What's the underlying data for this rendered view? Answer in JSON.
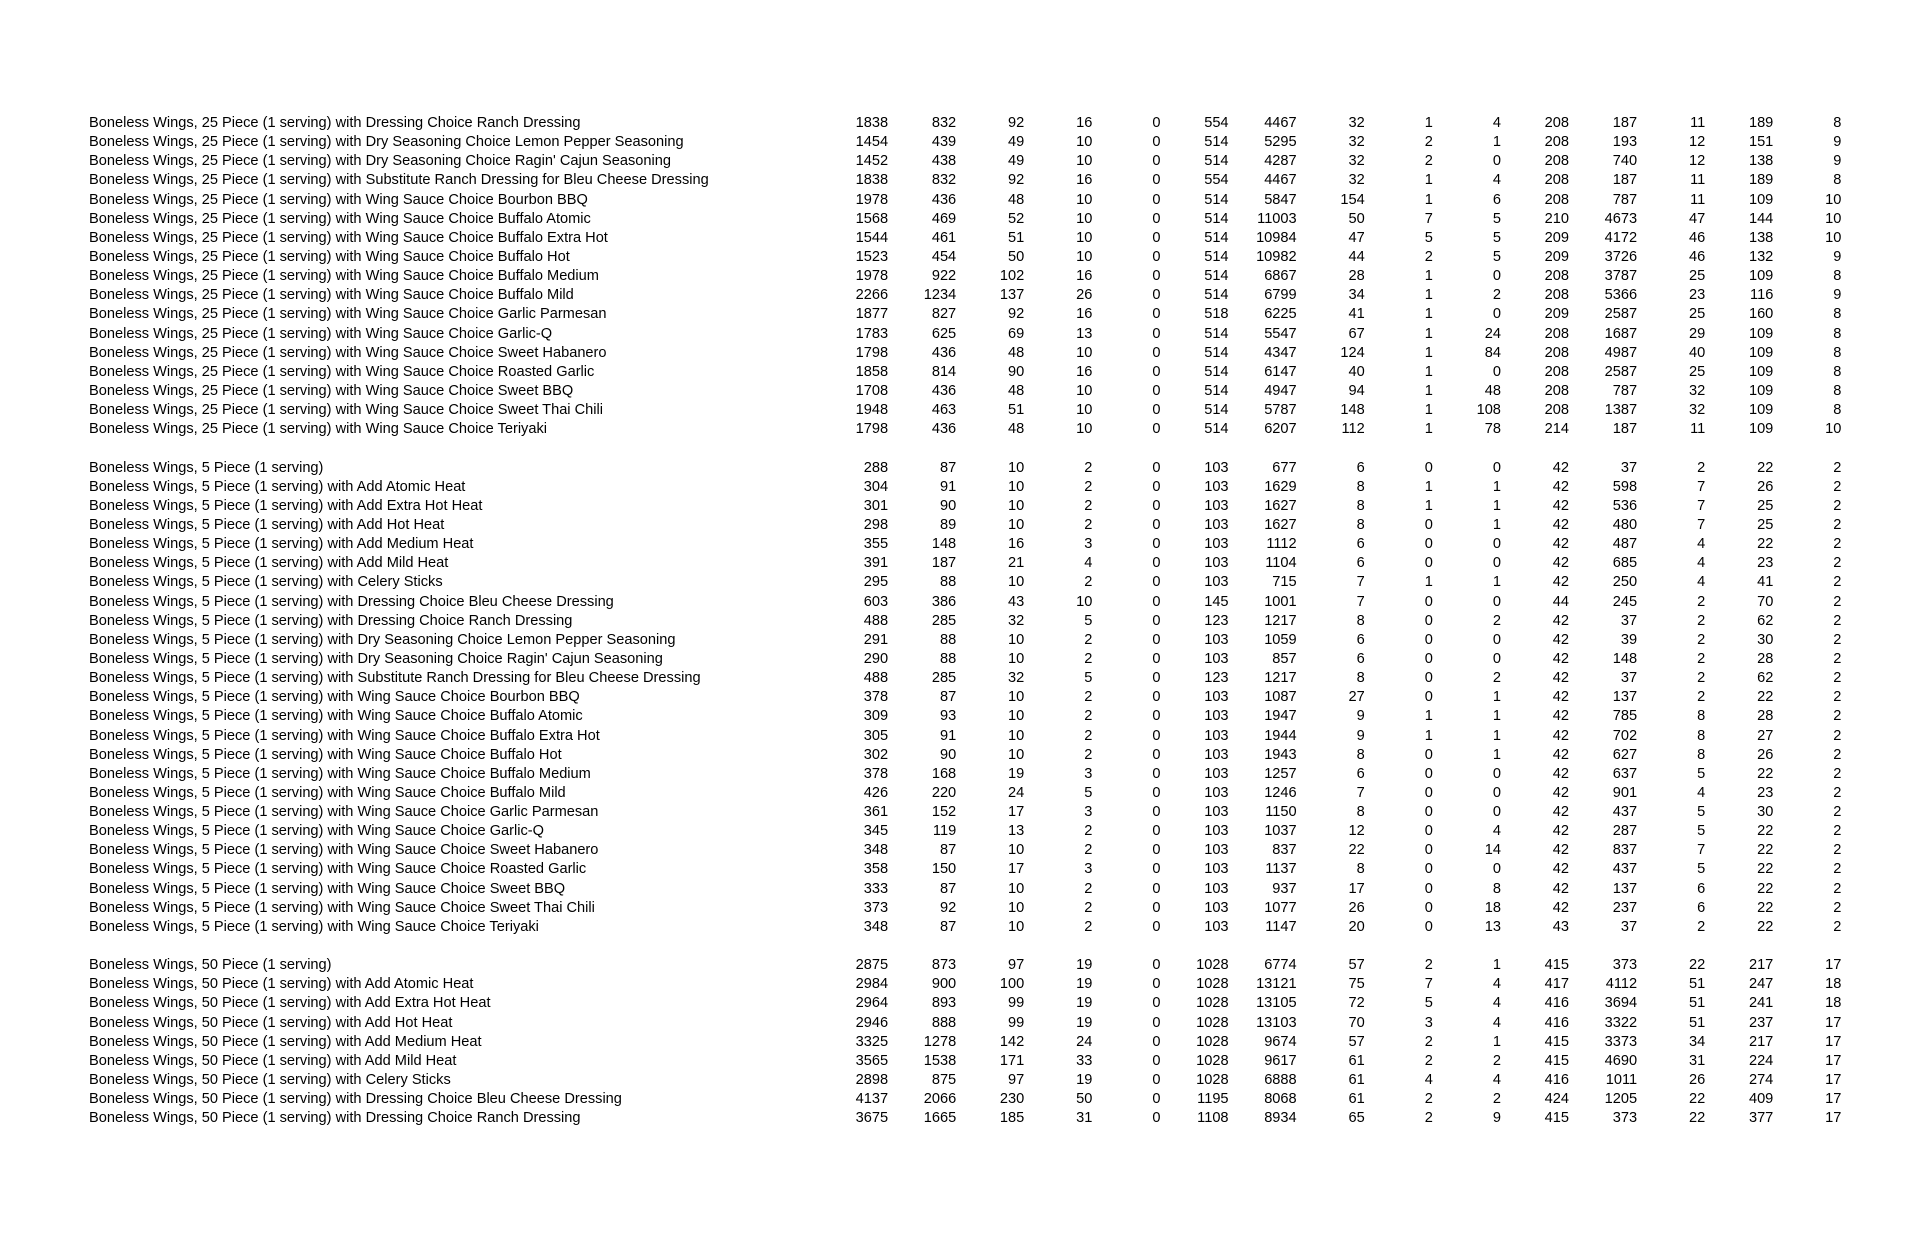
{
  "groups": [
    {
      "rows": [
        [
          "Boneless Wings, 25 Piece (1 serving) with Dressing Choice Ranch Dressing",
          1838,
          832,
          92,
          16,
          0,
          554,
          4467,
          32,
          1,
          4,
          208,
          187,
          11,
          189,
          8
        ],
        [
          "Boneless Wings, 25 Piece (1 serving) with Dry Seasoning Choice Lemon Pepper Seasoning",
          1454,
          439,
          49,
          10,
          0,
          514,
          5295,
          32,
          2,
          1,
          208,
          193,
          12,
          151,
          9
        ],
        [
          "Boneless Wings, 25 Piece (1 serving) with Dry Seasoning Choice Ragin' Cajun Seasoning",
          1452,
          438,
          49,
          10,
          0,
          514,
          4287,
          32,
          2,
          0,
          208,
          740,
          12,
          138,
          9
        ],
        [
          "Boneless Wings, 25 Piece (1 serving) with Substitute Ranch Dressing for Bleu Cheese Dressing",
          1838,
          832,
          92,
          16,
          0,
          554,
          4467,
          32,
          1,
          4,
          208,
          187,
          11,
          189,
          8
        ],
        [
          "Boneless Wings, 25 Piece (1 serving) with Wing Sauce Choice Bourbon BBQ",
          1978,
          436,
          48,
          10,
          0,
          514,
          5847,
          154,
          1,
          6,
          208,
          787,
          11,
          109,
          10
        ],
        [
          "Boneless Wings, 25 Piece (1 serving) with Wing Sauce Choice Buffalo Atomic",
          1568,
          469,
          52,
          10,
          0,
          514,
          11003,
          50,
          7,
          5,
          210,
          4673,
          47,
          144,
          10
        ],
        [
          "Boneless Wings, 25 Piece (1 serving) with Wing Sauce Choice Buffalo Extra Hot",
          1544,
          461,
          51,
          10,
          0,
          514,
          10984,
          47,
          5,
          5,
          209,
          4172,
          46,
          138,
          10
        ],
        [
          "Boneless Wings, 25 Piece (1 serving) with Wing Sauce Choice Buffalo Hot",
          1523,
          454,
          50,
          10,
          0,
          514,
          10982,
          44,
          2,
          5,
          209,
          3726,
          46,
          132,
          9
        ],
        [
          "Boneless Wings, 25 Piece (1 serving) with Wing Sauce Choice Buffalo Medium",
          1978,
          922,
          102,
          16,
          0,
          514,
          6867,
          28,
          1,
          0,
          208,
          3787,
          25,
          109,
          8
        ],
        [
          "Boneless Wings, 25 Piece (1 serving) with Wing Sauce Choice Buffalo Mild",
          2266,
          1234,
          137,
          26,
          0,
          514,
          6799,
          34,
          1,
          2,
          208,
          5366,
          23,
          116,
          9
        ],
        [
          "Boneless Wings, 25 Piece (1 serving) with Wing Sauce Choice Garlic Parmesan",
          1877,
          827,
          92,
          16,
          0,
          518,
          6225,
          41,
          1,
          0,
          209,
          2587,
          25,
          160,
          8
        ],
        [
          "Boneless Wings, 25 Piece (1 serving) with Wing Sauce Choice Garlic-Q",
          1783,
          625,
          69,
          13,
          0,
          514,
          5547,
          67,
          1,
          24,
          208,
          1687,
          29,
          109,
          8
        ],
        [
          "Boneless Wings, 25 Piece (1 serving) with Wing Sauce Choice Sweet Habanero",
          1798,
          436,
          48,
          10,
          0,
          514,
          4347,
          124,
          1,
          84,
          208,
          4987,
          40,
          109,
          8
        ],
        [
          "Boneless Wings, 25 Piece (1 serving) with Wing Sauce Choice Roasted Garlic",
          1858,
          814,
          90,
          16,
          0,
          514,
          6147,
          40,
          1,
          0,
          208,
          2587,
          25,
          109,
          8
        ],
        [
          "Boneless Wings, 25 Piece (1 serving) with Wing Sauce Choice Sweet BBQ",
          1708,
          436,
          48,
          10,
          0,
          514,
          4947,
          94,
          1,
          48,
          208,
          787,
          32,
          109,
          8
        ],
        [
          "Boneless Wings, 25 Piece (1 serving) with Wing Sauce Choice Sweet Thai Chili",
          1948,
          463,
          51,
          10,
          0,
          514,
          5787,
          148,
          1,
          108,
          208,
          1387,
          32,
          109,
          8
        ],
        [
          "Boneless Wings, 25 Piece (1 serving) with Wing Sauce Choice Teriyaki",
          1798,
          436,
          48,
          10,
          0,
          514,
          6207,
          112,
          1,
          78,
          214,
          187,
          11,
          109,
          10
        ]
      ]
    },
    {
      "rows": [
        [
          "Boneless Wings, 5 Piece (1 serving)",
          288,
          87,
          10,
          2,
          0,
          103,
          677,
          6,
          0,
          0,
          42,
          37,
          2,
          22,
          2
        ],
        [
          "Boneless Wings, 5 Piece (1 serving) with Add Atomic Heat",
          304,
          91,
          10,
          2,
          0,
          103,
          1629,
          8,
          1,
          1,
          42,
          598,
          7,
          26,
          2
        ],
        [
          "Boneless Wings, 5 Piece (1 serving) with Add Extra Hot Heat",
          301,
          90,
          10,
          2,
          0,
          103,
          1627,
          8,
          1,
          1,
          42,
          536,
          7,
          25,
          2
        ],
        [
          "Boneless Wings, 5 Piece (1 serving) with Add Hot Heat",
          298,
          89,
          10,
          2,
          0,
          103,
          1627,
          8,
          0,
          1,
          42,
          480,
          7,
          25,
          2
        ],
        [
          "Boneless Wings, 5 Piece (1 serving) with Add Medium Heat",
          355,
          148,
          16,
          3,
          0,
          103,
          1112,
          6,
          0,
          0,
          42,
          487,
          4,
          22,
          2
        ],
        [
          "Boneless Wings, 5 Piece (1 serving) with Add Mild Heat",
          391,
          187,
          21,
          4,
          0,
          103,
          1104,
          6,
          0,
          0,
          42,
          685,
          4,
          23,
          2
        ],
        [
          "Boneless Wings, 5 Piece (1 serving) with Celery Sticks",
          295,
          88,
          10,
          2,
          0,
          103,
          715,
          7,
          1,
          1,
          42,
          250,
          4,
          41,
          2
        ],
        [
          "Boneless Wings, 5 Piece (1 serving) with Dressing Choice Bleu Cheese Dressing",
          603,
          386,
          43,
          10,
          0,
          145,
          1001,
          7,
          0,
          0,
          44,
          245,
          2,
          70,
          2
        ],
        [
          "Boneless Wings, 5 Piece (1 serving) with Dressing Choice Ranch Dressing",
          488,
          285,
          32,
          5,
          0,
          123,
          1217,
          8,
          0,
          2,
          42,
          37,
          2,
          62,
          2
        ],
        [
          "Boneless Wings, 5 Piece (1 serving) with Dry Seasoning Choice Lemon Pepper Seasoning",
          291,
          88,
          10,
          2,
          0,
          103,
          1059,
          6,
          0,
          0,
          42,
          39,
          2,
          30,
          2
        ],
        [
          "Boneless Wings, 5 Piece (1 serving) with Dry Seasoning Choice Ragin' Cajun Seasoning",
          290,
          88,
          10,
          2,
          0,
          103,
          857,
          6,
          0,
          0,
          42,
          148,
          2,
          28,
          2
        ],
        [
          "Boneless Wings, 5 Piece (1 serving) with Substitute Ranch Dressing for Bleu Cheese Dressing",
          488,
          285,
          32,
          5,
          0,
          123,
          1217,
          8,
          0,
          2,
          42,
          37,
          2,
          62,
          2
        ],
        [
          "Boneless Wings, 5 Piece (1 serving) with Wing Sauce Choice Bourbon BBQ",
          378,
          87,
          10,
          2,
          0,
          103,
          1087,
          27,
          0,
          1,
          42,
          137,
          2,
          22,
          2
        ],
        [
          "Boneless Wings, 5 Piece (1 serving) with Wing Sauce Choice Buffalo Atomic",
          309,
          93,
          10,
          2,
          0,
          103,
          1947,
          9,
          1,
          1,
          42,
          785,
          8,
          28,
          2
        ],
        [
          "Boneless Wings, 5 Piece (1 serving) with Wing Sauce Choice Buffalo Extra Hot",
          305,
          91,
          10,
          2,
          0,
          103,
          1944,
          9,
          1,
          1,
          42,
          702,
          8,
          27,
          2
        ],
        [
          "Boneless Wings, 5 Piece (1 serving) with Wing Sauce Choice Buffalo Hot",
          302,
          90,
          10,
          2,
          0,
          103,
          1943,
          8,
          0,
          1,
          42,
          627,
          8,
          26,
          2
        ],
        [
          "Boneless Wings, 5 Piece (1 serving) with Wing Sauce Choice Buffalo Medium",
          378,
          168,
          19,
          3,
          0,
          103,
          1257,
          6,
          0,
          0,
          42,
          637,
          5,
          22,
          2
        ],
        [
          "Boneless Wings, 5 Piece (1 serving) with Wing Sauce Choice Buffalo Mild",
          426,
          220,
          24,
          5,
          0,
          103,
          1246,
          7,
          0,
          0,
          42,
          901,
          4,
          23,
          2
        ],
        [
          "Boneless Wings, 5 Piece (1 serving) with Wing Sauce Choice Garlic Parmesan",
          361,
          152,
          17,
          3,
          0,
          103,
          1150,
          8,
          0,
          0,
          42,
          437,
          5,
          30,
          2
        ],
        [
          "Boneless Wings, 5 Piece (1 serving) with Wing Sauce Choice Garlic-Q",
          345,
          119,
          13,
          2,
          0,
          103,
          1037,
          12,
          0,
          4,
          42,
          287,
          5,
          22,
          2
        ],
        [
          "Boneless Wings, 5 Piece (1 serving) with Wing Sauce Choice Sweet Habanero",
          348,
          87,
          10,
          2,
          0,
          103,
          837,
          22,
          0,
          14,
          42,
          837,
          7,
          22,
          2
        ],
        [
          "Boneless Wings, 5 Piece (1 serving) with Wing Sauce Choice Roasted Garlic",
          358,
          150,
          17,
          3,
          0,
          103,
          1137,
          8,
          0,
          0,
          42,
          437,
          5,
          22,
          2
        ],
        [
          "Boneless Wings, 5 Piece (1 serving) with Wing Sauce Choice Sweet BBQ",
          333,
          87,
          10,
          2,
          0,
          103,
          937,
          17,
          0,
          8,
          42,
          137,
          6,
          22,
          2
        ],
        [
          "Boneless Wings, 5 Piece (1 serving) with Wing Sauce Choice Sweet Thai Chili",
          373,
          92,
          10,
          2,
          0,
          103,
          1077,
          26,
          0,
          18,
          42,
          237,
          6,
          22,
          2
        ],
        [
          "Boneless Wings, 5 Piece (1 serving) with Wing Sauce Choice Teriyaki",
          348,
          87,
          10,
          2,
          0,
          103,
          1147,
          20,
          0,
          13,
          43,
          37,
          2,
          22,
          2
        ]
      ]
    },
    {
      "rows": [
        [
          "Boneless Wings, 50 Piece (1 serving)",
          2875,
          873,
          97,
          19,
          0,
          1028,
          6774,
          57,
          2,
          1,
          415,
          373,
          22,
          217,
          17
        ],
        [
          "Boneless Wings, 50 Piece (1 serving) with Add Atomic Heat",
          2984,
          900,
          100,
          19,
          0,
          1028,
          13121,
          75,
          7,
          4,
          417,
          4112,
          51,
          247,
          18
        ],
        [
          "Boneless Wings, 50 Piece (1 serving) with Add Extra Hot Heat",
          2964,
          893,
          99,
          19,
          0,
          1028,
          13105,
          72,
          5,
          4,
          416,
          3694,
          51,
          241,
          18
        ],
        [
          "Boneless Wings, 50 Piece (1 serving) with Add Hot Heat",
          2946,
          888,
          99,
          19,
          0,
          1028,
          13103,
          70,
          3,
          4,
          416,
          3322,
          51,
          237,
          17
        ],
        [
          "Boneless Wings, 50 Piece (1 serving) with Add Medium Heat",
          3325,
          1278,
          142,
          24,
          0,
          1028,
          9674,
          57,
          2,
          1,
          415,
          3373,
          34,
          217,
          17
        ],
        [
          "Boneless Wings, 50 Piece (1 serving) with Add Mild Heat",
          3565,
          1538,
          171,
          33,
          0,
          1028,
          9617,
          61,
          2,
          2,
          415,
          4690,
          31,
          224,
          17
        ],
        [
          "Boneless Wings, 50 Piece (1 serving) with Celery Sticks",
          2898,
          875,
          97,
          19,
          0,
          1028,
          6888,
          61,
          4,
          4,
          416,
          1011,
          26,
          274,
          17
        ],
        [
          "Boneless Wings, 50 Piece (1 serving) with Dressing Choice Bleu Cheese Dressing",
          4137,
          2066,
          230,
          50,
          0,
          1195,
          8068,
          61,
          2,
          2,
          424,
          1205,
          22,
          409,
          17
        ],
        [
          "Boneless Wings, 50 Piece (1 serving) with Dressing Choice Ranch Dressing",
          3675,
          1665,
          185,
          31,
          0,
          1108,
          8934,
          65,
          2,
          9,
          415,
          373,
          22,
          377,
          17
        ]
      ]
    }
  ]
}
